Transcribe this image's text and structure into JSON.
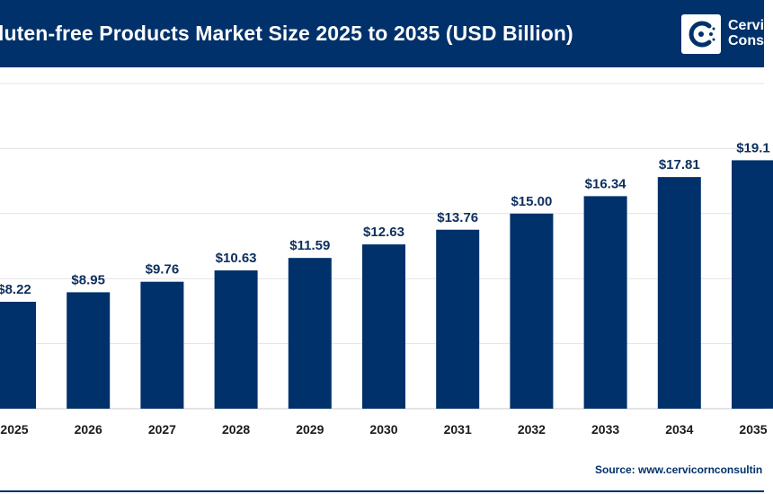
{
  "header": {
    "title": "luten-free Products Market Size 2025 to 2035 (USD Billion)",
    "logo_line1": "Cervic",
    "logo_line2": "Consu"
  },
  "source": "Source: www.cervicornconsultin",
  "colors": {
    "header_bg": "#00316b",
    "bar": "#00316b",
    "label": "#0d2f5e",
    "grid": "#e3e3e3",
    "axis": "#c9c9c9"
  },
  "chart_data": {
    "type": "bar",
    "categories": [
      "2025",
      "2026",
      "2027",
      "2028",
      "2029",
      "2030",
      "2031",
      "2032",
      "2033",
      "2034",
      "2035"
    ],
    "values": [
      8.22,
      8.95,
      9.76,
      10.63,
      11.59,
      12.63,
      13.76,
      15.0,
      16.34,
      17.81,
      19.1
    ],
    "data_labels": [
      "$8.22",
      "$8.95",
      "$9.76",
      "$10.63",
      "$11.59",
      "$12.63",
      "$13.76",
      "$15.00",
      "$16.34",
      "$17.81",
      "$19.1"
    ],
    "title": "luten-free Products Market Size 2025 to 2035 (USD Billion)",
    "xlabel": "",
    "ylabel": "",
    "ylim": [
      0,
      25
    ],
    "grid": true,
    "legend": "none"
  }
}
